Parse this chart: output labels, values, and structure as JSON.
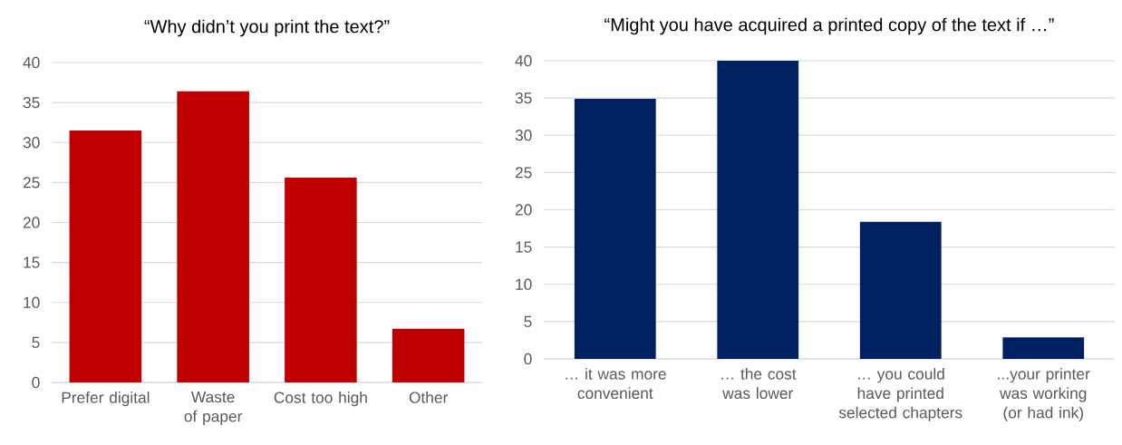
{
  "chart_data": [
    {
      "type": "bar",
      "title": "“Why didn’t you print the text?”",
      "categories": [
        "Prefer digital",
        "Waste of paper",
        "Cost too high",
        "Other"
      ],
      "values": [
        31.5,
        36.4,
        25.6,
        6.7
      ],
      "color": "#c00000",
      "ylim": [
        0,
        40
      ],
      "yticks": [
        0,
        5,
        10,
        15,
        20,
        25,
        30,
        35,
        40
      ],
      "grid": "y"
    },
    {
      "type": "bar",
      "title": "“Might you have acquired a printed copy of the text if …”",
      "categories": [
        "… it was more convenient",
        "… the cost was lower",
        "… you could have printed selected chapters",
        "...your printer was working (or had ink)"
      ],
      "values": [
        34.9,
        40,
        18.4,
        2.9
      ],
      "color": "#002060",
      "ylim": [
        0,
        40
      ],
      "yticks": [
        0,
        5,
        10,
        15,
        20,
        25,
        30,
        35,
        40
      ],
      "grid": "y"
    }
  ]
}
